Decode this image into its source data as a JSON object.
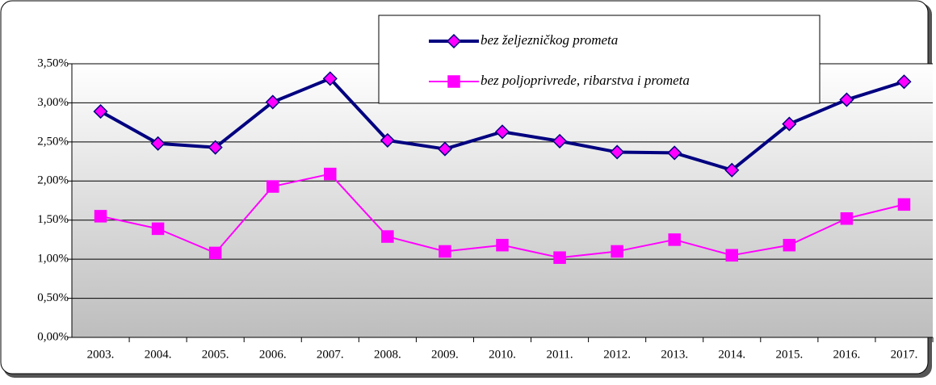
{
  "chart_data": {
    "type": "line",
    "categories": [
      "2003.",
      "2004.",
      "2005.",
      "2006.",
      "2007.",
      "2008.",
      "2009.",
      "2010.",
      "2011.",
      "2012.",
      "2013.",
      "2014.",
      "2015.",
      "2016.",
      "2017."
    ],
    "series": [
      {
        "name": "bez željezničkog prometa",
        "color": "#000080",
        "marker": "diamond",
        "marker_color": "#ff00ff",
        "values": [
          2.89,
          2.48,
          2.43,
          3.01,
          3.31,
          2.52,
          2.41,
          2.63,
          2.51,
          2.37,
          2.36,
          2.14,
          2.73,
          3.04,
          3.27
        ]
      },
      {
        "name": "bez poljoprivrede, ribarstva i prometa",
        "color": "#ff00ff",
        "marker": "square",
        "marker_color": "#ff00ff",
        "values": [
          1.55,
          1.39,
          1.08,
          1.93,
          2.09,
          1.29,
          1.1,
          1.18,
          1.02,
          1.1,
          1.25,
          1.05,
          1.18,
          1.52,
          1.7
        ]
      }
    ],
    "ylim": [
      0,
      3.5
    ],
    "yticks": [
      {
        "value": 0,
        "label": "0,00%"
      },
      {
        "value": 0.5,
        "label": "0,50%"
      },
      {
        "value": 1,
        "label": "1,00%"
      },
      {
        "value": 1.5,
        "label": "1,50%"
      },
      {
        "value": 2,
        "label": "2,00%"
      },
      {
        "value": 2.5,
        "label": "2,50%"
      },
      {
        "value": 3,
        "label": "3,00%"
      },
      {
        "value": 3.5,
        "label": "3,50%"
      }
    ],
    "grid": true,
    "legend": "top"
  }
}
